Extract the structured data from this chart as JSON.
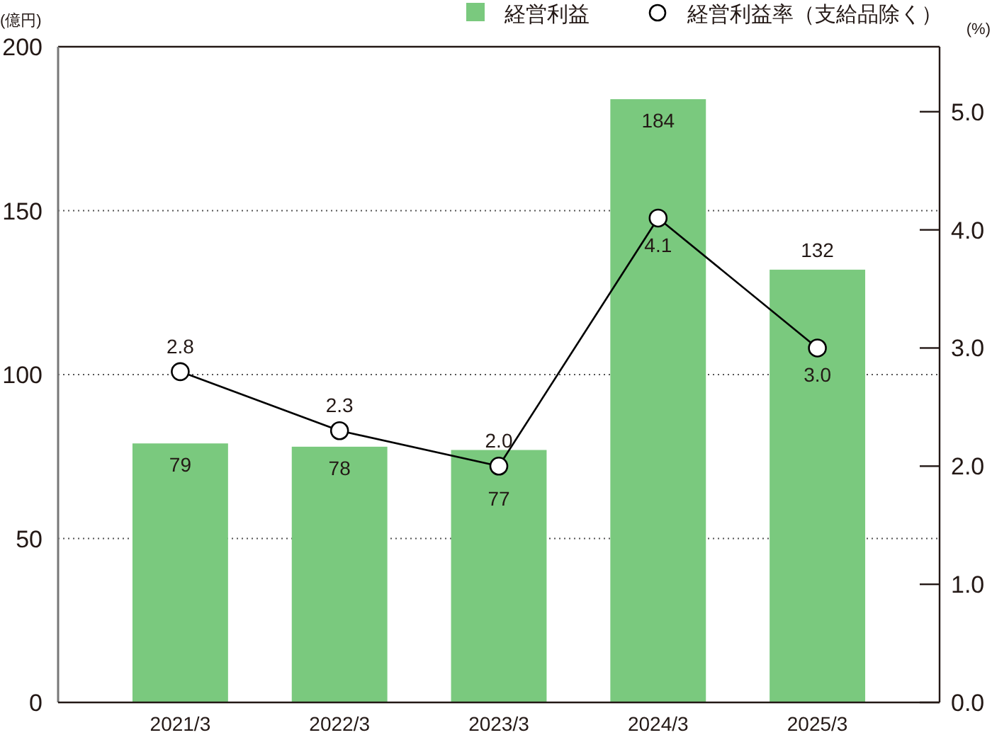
{
  "chart_data": {
    "type": "bar",
    "ylabel": "(億円)",
    "y2label": "(%)",
    "categories": [
      "2021/3",
      "2022/3",
      "2023/3",
      "2024/3",
      "2025/3"
    ],
    "series": [
      {
        "name": "経営利益",
        "color": "#7ac97e",
        "values": [
          79,
          78,
          77,
          184,
          132
        ]
      },
      {
        "name": "経営利益率（支給品除く）",
        "type": "line",
        "axis": "y2",
        "color": "#000000",
        "marker": "circle",
        "values": [
          2.8,
          2.3,
          2.0,
          4.1,
          3.0
        ],
        "value_labels": [
          "2.8",
          "2.3",
          "2.0",
          "4.1",
          "3.0"
        ]
      }
    ],
    "ylim": [
      0,
      200
    ],
    "yticks": [
      0,
      50,
      100,
      150,
      200
    ],
    "y2lim": [
      0,
      5.55
    ],
    "y2ticks": [
      {
        "value": 0,
        "label": "0.0"
      },
      {
        "value": 1,
        "label": "1.0"
      },
      {
        "value": 2,
        "label": "2.0"
      },
      {
        "value": 3,
        "label": "3.0"
      },
      {
        "value": 4,
        "label": "4.0"
      },
      {
        "value": 5,
        "label": "5.0"
      }
    ],
    "grid": "y",
    "legend": "top right",
    "data_labels": true
  }
}
